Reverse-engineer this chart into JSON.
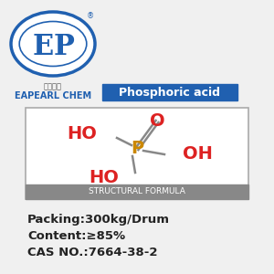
{
  "bg_color": "#f0f0f0",
  "title_bg_color": "#2060b0",
  "title_text": "Phosphoric acid",
  "title_text_color": "#ffffff",
  "logo_ellipse_color": "#2060b0",
  "logo_company_cn": "易普化工",
  "logo_company_en": "EAPEARL CHEM",
  "struct_box_color": "#ffffff",
  "struct_border_color": "#aaaaaa",
  "struct_label_bg": "#888888",
  "struct_label_text": "STRUCTURAL FORMULA",
  "struct_label_text_color": "#ffffff",
  "atom_P_color": "#cc8800",
  "atom_O_color": "#dd2222",
  "atom_HO_color": "#dd2222",
  "bond_color": "#888888",
  "info_line1": "Packing:300kg/Drum",
  "info_line2": "Content:≥85%",
  "info_line3": "CAS NO.:7664-38-2",
  "info_text_color": "#222222"
}
